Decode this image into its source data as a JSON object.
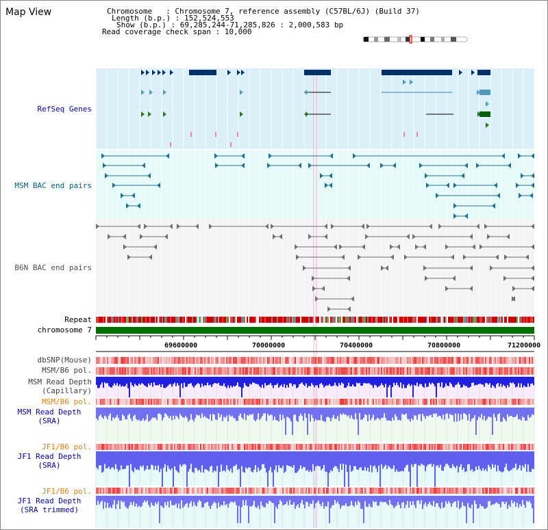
{
  "page_title": "Map View",
  "info": {
    "chromosome": "Chromosome   : Chromosome 7, reference assembly (C57BL/6J) (Build 37)",
    "length": "Length (b.p.) : 152,524,553",
    "show": "Show (b.p.) : 69,285,244-71,285,826 : 2,000,583 bp",
    "coverage": "Read coverage check span : 10,000"
  },
  "tracks": {
    "refseq": "RefSeq Genes",
    "msm_bac": "MSM BAC end pairs",
    "b6n_bac": "B6N BAC end pairs",
    "repeat": "Repeat",
    "chromosome": "chromosome 7",
    "dbsnp": "dbSNP(Mouse)",
    "msm_b6_pol_1": "MSM/B6 pol.",
    "msm_read_depth_cap_1": "MSM Read Depth",
    "msm_read_depth_cap_2": "(Capillary)",
    "msm_b6_pol_2": "MSM/B6 pol.",
    "msm_read_depth_sra_1": "MSM Read Depth",
    "msm_read_depth_sra_2": "(SRA)",
    "jf1_b6_pol_1": "JF1/B6 pol.",
    "jf1_read_depth_sra_1": "JF1 Read Depth",
    "jf1_read_depth_sra_2": "(SRA)",
    "jf1_b6_pol_2": "JF1/B6 pol.",
    "jf1_read_depth_trim_1": "JF1 Read Depth",
    "jf1_read_depth_trim_2": "(SRA trimmed)"
  },
  "axis_ticks": [
    "69600000",
    "70000000",
    "70400000",
    "70800000",
    "71200000"
  ],
  "colors": {
    "refseq_bg": "#dcf0fa",
    "msm_bac_bg": "#e6fafa",
    "b6n_bac_bg": "#f2f2f4",
    "chromosome_bar": "#007000",
    "label_blue": "#0000a0",
    "label_teal": "#006080",
    "label_gray": "#404040",
    "label_orange": "#e08000",
    "depth_blue": "#3030e0",
    "pol_red": "#e04040"
  }
}
